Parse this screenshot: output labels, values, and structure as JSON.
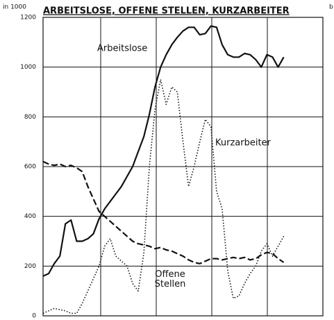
{
  "chart_data": {
    "type": "line",
    "title": "ARBEITSLOSE, OFFENE STELLEN, KURZARBEITER",
    "title_note": "b",
    "y_label": "in 1000",
    "categories": [
      null,
      null,
      null,
      null,
      null,
      null,
      null,
      null,
      null,
      null,
      null,
      null,
      null,
      null,
      null,
      null,
      null,
      null,
      null,
      null,
      null,
      null,
      null,
      null,
      null,
      null,
      null,
      null,
      null,
      null,
      null,
      null,
      null,
      null,
      null,
      null,
      null,
      null,
      null,
      null,
      null,
      null,
      null,
      null,
      null,
      null,
      null,
      null,
      null,
      null
    ],
    "ylim": [
      0,
      1200
    ],
    "yticks": [
      0,
      200,
      400,
      600,
      800,
      1000,
      1200
    ],
    "grid": true,
    "series": [
      {
        "name": "Arbeitslose",
        "color": "#111",
        "style": "solid",
        "values": [
          160,
          170,
          210,
          240,
          370,
          385,
          300,
          300,
          310,
          330,
          390,
          430,
          460,
          490,
          520,
          560,
          600,
          660,
          720,
          810,
          920,
          1000,
          1050,
          1090,
          1120,
          1145,
          1160,
          1160,
          1130,
          1135,
          1165,
          1160,
          1090,
          1050,
          1040,
          1040,
          1055,
          1050,
          1030,
          1000,
          1050,
          1040,
          1000,
          1040,
          null,
          null,
          null,
          null,
          null,
          null
        ]
      },
      {
        "name": "Offene Stellen",
        "color": "#111",
        "style": "dashed",
        "values": [
          620,
          610,
          605,
          610,
          600,
          605,
          595,
          580,
          520,
          470,
          420,
          400,
          380,
          360,
          340,
          320,
          300,
          290,
          285,
          280,
          270,
          275,
          265,
          260,
          250,
          240,
          225,
          215,
          210,
          220,
          230,
          230,
          225,
          230,
          235,
          230,
          235,
          225,
          230,
          245,
          255,
          250,
          230,
          215,
          null,
          null,
          null,
          null,
          null,
          null
        ]
      },
      {
        "name": "Kurzarbeiter",
        "color": "#111",
        "style": "dotted",
        "values": [
          10,
          20,
          30,
          25,
          20,
          10,
          10,
          50,
          100,
          150,
          200,
          280,
          310,
          240,
          220,
          200,
          130,
          100,
          250,
          600,
          830,
          950,
          850,
          920,
          900,
          700,
          520,
          600,
          700,
          790,
          760,
          500,
          430,
          180,
          70,
          80,
          130,
          170,
          200,
          260,
          290,
          240,
          280,
          320,
          null,
          null,
          null,
          null,
          null,
          null
        ]
      }
    ]
  }
}
